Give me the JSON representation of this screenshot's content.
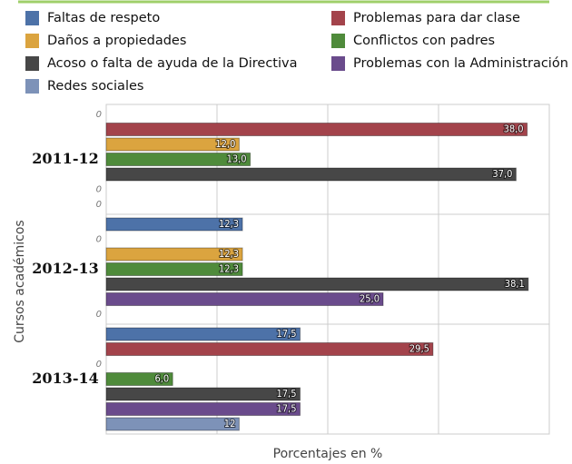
{
  "chart_data": {
    "type": "hbar",
    "xlabel": "Porcentajes en %",
    "ylabel": "Cursos académicos",
    "categories": [
      "2011-12",
      "2012-13",
      "2013-14"
    ],
    "xlim": [
      0,
      40
    ],
    "xticks": [
      0,
      10,
      20,
      30,
      40
    ],
    "grid": true,
    "series": [
      {
        "name": "Faltas de respeto",
        "color": "#4d72a8",
        "values": [
          0,
          12.3,
          17.5
        ],
        "value_labels": [
          "0",
          "12,3",
          "17,5"
        ]
      },
      {
        "name": "Problemas para dar clase",
        "color": "#a3434b",
        "values": [
          38.0,
          0,
          29.5
        ],
        "value_labels": [
          "38,0",
          "0",
          "29,5"
        ]
      },
      {
        "name": "Daños a propiedades",
        "color": "#dba43f",
        "values": [
          12.0,
          12.3,
          0
        ],
        "value_labels": [
          "12,0",
          "12,3",
          "0"
        ]
      },
      {
        "name": "Conflictos con padres",
        "color": "#4f8b3b",
        "values": [
          13.0,
          12.3,
          6.0
        ],
        "value_labels": [
          "13,0",
          "12,3",
          "6,0"
        ]
      },
      {
        "name": "Acoso o falta de ayuda de la Directiva",
        "color": "#474747",
        "values": [
          37.0,
          38.1,
          17.5
        ],
        "value_labels": [
          "37,0",
          "38,1",
          "17,5"
        ]
      },
      {
        "name": "Problemas con la Administración",
        "color": "#6a4b8c",
        "values": [
          0,
          25.0,
          17.5
        ],
        "value_labels": [
          "0",
          "25,0",
          "17,5"
        ]
      },
      {
        "name": "Redes sociales",
        "color": "#7d92b8",
        "values": [
          0,
          0,
          12
        ],
        "value_labels": [
          "0",
          "0",
          "12"
        ]
      }
    ]
  }
}
